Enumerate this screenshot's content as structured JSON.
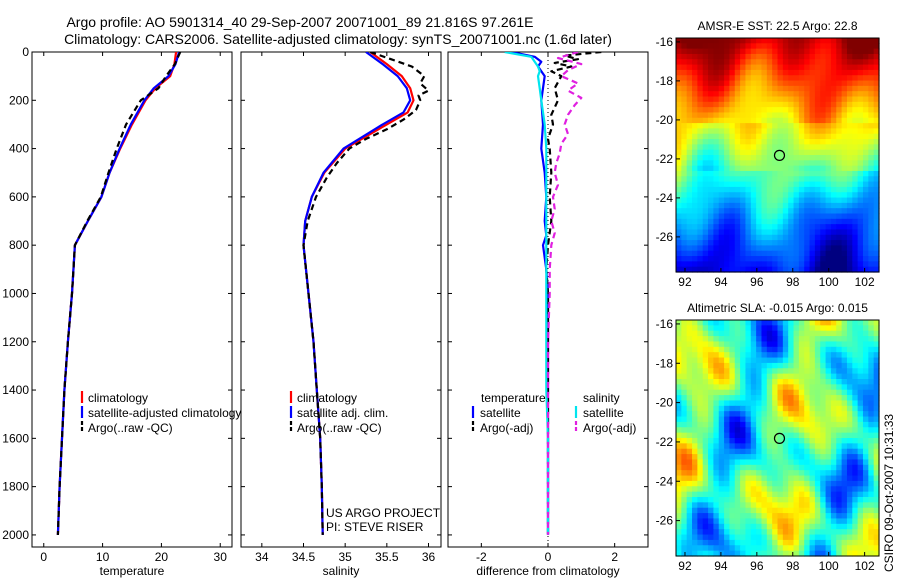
{
  "header": {
    "title_line1": "Argo profile: AO 5901314_40 29-Sep-2007 20071001_89 21.816S 97.261E",
    "title_line2": "Climatology: CARS2006. Satellite-adjusted climatology: synTS_20071001.nc (1.6d later)"
  },
  "side_stamp": "CSIRO 09-Oct-2007 10:31:33",
  "colors": {
    "climatology": "#ff0000",
    "satellite": "#0000ff",
    "argo": "#000000",
    "salinity_satellite": "#00e5ee",
    "salinity_argo": "#e020e0"
  },
  "chart_data": [
    {
      "id": "temperature",
      "type": "line",
      "xlabel": "temperature",
      "ylabel": "",
      "xlim": [
        -2,
        32
      ],
      "ylim": [
        2050,
        0
      ],
      "xticks": [
        0,
        10,
        20,
        30
      ],
      "yticks": [
        0,
        200,
        400,
        600,
        800,
        1000,
        1200,
        1400,
        1600,
        1800,
        2000
      ],
      "legend": [
        "climatology",
        "satellite-adjusted climatology",
        "Argo(..raw -QC)"
      ],
      "series": [
        {
          "name": "climatology",
          "y": [
            0,
            50,
            100,
            150,
            200,
            300,
            400,
            500,
            600,
            700,
            800,
            1000,
            1200,
            1400,
            1600,
            1800,
            2000
          ],
          "values": [
            22.5,
            22.2,
            21.5,
            19.0,
            17.3,
            15.0,
            13.0,
            11.2,
            9.8,
            7.5,
            5.3,
            4.8,
            4.1,
            3.5,
            3.1,
            2.7,
            2.4
          ]
        },
        {
          "name": "satellite-adjusted climatology",
          "y": [
            0,
            50,
            100,
            150,
            200,
            300,
            400,
            500,
            600,
            700,
            800,
            1000,
            1200,
            1400,
            1600,
            1800,
            2000
          ],
          "values": [
            23.0,
            22.4,
            21.2,
            18.7,
            17.1,
            14.8,
            12.9,
            11.2,
            9.8,
            7.5,
            5.3,
            4.8,
            4.1,
            3.5,
            3.1,
            2.7,
            2.4
          ]
        },
        {
          "name": "Argo(..raw -QC)",
          "y": [
            0,
            50,
            100,
            150,
            200,
            300,
            400,
            500,
            600,
            700,
            800,
            1000,
            1200,
            1400,
            1600,
            1800,
            2000
          ],
          "values": [
            23.2,
            22.3,
            20.8,
            19.5,
            16.5,
            14.0,
            12.4,
            11.0,
            9.7,
            7.4,
            5.3,
            4.8,
            4.1,
            3.5,
            3.1,
            2.7,
            2.4
          ]
        }
      ]
    },
    {
      "id": "salinity",
      "type": "line",
      "xlabel": "salinity",
      "ylabel": "",
      "xlim": [
        33.75,
        36.15
      ],
      "ylim": [
        2050,
        0
      ],
      "xticks": [
        34,
        34.5,
        35,
        35.5,
        36
      ],
      "yticks": [
        0,
        200,
        400,
        600,
        800,
        1000,
        1200,
        1400,
        1600,
        1800,
        2000
      ],
      "legend": [
        "climatology",
        "satellite adj. clim.",
        "Argo(..raw -QC)"
      ],
      "annotation_line1": "US ARGO PROJECT",
      "annotation_line2": "PI: STEVE RISER",
      "series": [
        {
          "name": "climatology",
          "y": [
            0,
            50,
            100,
            150,
            200,
            250,
            300,
            400,
            500,
            600,
            700,
            800,
            1000,
            1200,
            1400,
            1600,
            1800,
            2000
          ],
          "values": [
            35.3,
            35.5,
            35.68,
            35.78,
            35.82,
            35.75,
            35.5,
            35.0,
            34.75,
            34.6,
            34.52,
            34.5,
            34.56,
            34.62,
            34.66,
            34.7,
            34.72,
            34.73
          ]
        },
        {
          "name": "satellite adj. clim.",
          "y": [
            0,
            50,
            100,
            150,
            200,
            250,
            300,
            400,
            500,
            600,
            700,
            800,
            1000,
            1200,
            1400,
            1600,
            1800,
            2000
          ],
          "values": [
            35.25,
            35.45,
            35.63,
            35.74,
            35.78,
            35.7,
            35.45,
            34.98,
            34.74,
            34.6,
            34.52,
            34.5,
            34.56,
            34.62,
            34.66,
            34.7,
            34.72,
            34.73
          ]
        },
        {
          "name": "Argo(..raw -QC)",
          "y": [
            0,
            30,
            60,
            100,
            130,
            160,
            180,
            200,
            240,
            280,
            320,
            360,
            400,
            460,
            520,
            600,
            700,
            800,
            1000,
            1200,
            1400,
            1600,
            1800,
            2000
          ],
          "values": [
            35.3,
            35.55,
            35.8,
            35.95,
            35.9,
            36.0,
            35.88,
            35.9,
            35.85,
            35.7,
            35.5,
            35.25,
            35.05,
            34.9,
            34.78,
            34.65,
            34.55,
            34.5,
            34.56,
            34.62,
            34.66,
            34.7,
            34.72,
            34.73
          ]
        }
      ]
    },
    {
      "id": "difference",
      "type": "line",
      "xlabel": "difference from climatology",
      "ylabel": "",
      "xlim": [
        -3,
        3
      ],
      "ylim": [
        2050,
        0
      ],
      "xticks": [
        -2,
        0,
        2
      ],
      "yticks": [
        0,
        200,
        400,
        600,
        800,
        1000,
        1200,
        1400,
        1600,
        1800,
        2000
      ],
      "legend_header_left": "temperature",
      "legend_header_right": "salinity",
      "legend_left": [
        "satellite",
        "Argo(-adj)"
      ],
      "legend_right": [
        "satellite",
        "Argo(-adj)"
      ],
      "series": [
        {
          "name": "temperature satellite",
          "y": [
            0,
            20,
            40,
            60,
            100,
            150,
            200,
            300,
            400,
            500,
            600,
            700,
            760,
            800,
            900,
            1000,
            1200,
            1600,
            2000
          ],
          "values": [
            -1.1,
            -0.4,
            -0.2,
            -0.3,
            -0.1,
            -0.15,
            -0.2,
            -0.15,
            -0.2,
            -0.1,
            -0.05,
            -0.1,
            -0.05,
            -0.15,
            -0.05,
            0.0,
            0.0,
            0.0,
            0.0
          ]
        },
        {
          "name": "temperature Argo(-adj)",
          "y": [
            0,
            15,
            30,
            45,
            60,
            80,
            100,
            150,
            200,
            260,
            300,
            360,
            400,
            500,
            600,
            700,
            800,
            900,
            1000,
            1200,
            1600,
            2000
          ],
          "values": [
            1.6,
            0.5,
            0.9,
            0.2,
            0.7,
            0.1,
            0.4,
            0.2,
            0.3,
            0.1,
            0.15,
            0.0,
            0.05,
            0.1,
            0.05,
            0.1,
            0.0,
            -0.05,
            0.0,
            0.0,
            0.0,
            0.0
          ]
        },
        {
          "name": "salinity satellite",
          "y": [
            0,
            20,
            40,
            60,
            80,
            100,
            150,
            200,
            300,
            400,
            600,
            800,
            1000,
            1200,
            1400,
            1600,
            1800,
            2000
          ],
          "values": [
            -1.3,
            -0.5,
            -0.4,
            -0.3,
            -0.25,
            -0.3,
            -0.25,
            -0.2,
            -0.1,
            -0.05,
            -0.05,
            -0.05,
            -0.05,
            -0.05,
            -0.05,
            0.0,
            0.0,
            0.0
          ]
        },
        {
          "name": "salinity Argo(-adj)",
          "y": [
            0,
            25,
            50,
            75,
            100,
            130,
            160,
            190,
            220,
            260,
            300,
            340,
            380,
            420,
            460,
            500,
            550,
            600,
            650,
            700,
            750,
            800,
            900,
            1000,
            1200,
            1600,
            2000
          ],
          "values": [
            0.9,
            0.3,
            1.0,
            0.6,
            0.4,
            0.9,
            0.6,
            1.0,
            0.8,
            0.6,
            0.5,
            0.6,
            0.4,
            0.35,
            0.25,
            0.2,
            0.3,
            0.15,
            0.2,
            0.1,
            0.2,
            0.1,
            0.05,
            0.05,
            0.0,
            0.0,
            0.0
          ]
        }
      ]
    },
    {
      "id": "sst_map",
      "type": "heatmap",
      "title": "AMSR-E SST: 22.5 Argo: 22.8",
      "xlim": [
        91.5,
        102.8
      ],
      "ylim": [
        -27.8,
        -15.8
      ],
      "xticks": [
        92,
        94,
        96,
        98,
        100,
        102
      ],
      "yticks": [
        -16,
        -18,
        -20,
        -22,
        -24,
        -26
      ],
      "marker": {
        "x": 97.26,
        "y": -21.82
      },
      "colormap": "jet"
    },
    {
      "id": "sla_map",
      "type": "heatmap",
      "title": "Altimetric SLA: -0.015 Argo: 0.015",
      "xlim": [
        91.5,
        102.8
      ],
      "ylim": [
        -27.8,
        -15.8
      ],
      "xticks": [
        92,
        94,
        96,
        98,
        100,
        102
      ],
      "yticks": [
        -16,
        -18,
        -20,
        -22,
        -24,
        -26
      ],
      "marker": {
        "x": 97.26,
        "y": -21.82
      },
      "colormap": "jet"
    }
  ]
}
